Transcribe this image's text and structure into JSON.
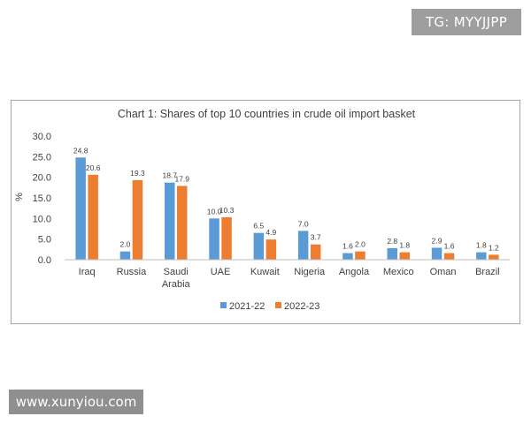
{
  "watermarks": {
    "top": "TG: MYYJJPP",
    "bottom": "www.xunyiou.com"
  },
  "colors": {
    "series_2021": "#5b9bd5",
    "series_2022": "#ed7d31",
    "axis": "#bfbfbf",
    "text": "#404040"
  },
  "chart_data": {
    "type": "bar",
    "title": "Chart 1: Shares of top 10 countries in crude oil import basket",
    "xlabel": "",
    "ylabel": "%",
    "ylim": [
      0,
      30
    ],
    "yticks": [
      "0.0",
      "5.0",
      "10.0",
      "15.0",
      "20.0",
      "25.0",
      "30.0"
    ],
    "categories": [
      [
        "Iraq"
      ],
      [
        "Russia"
      ],
      [
        "Saudi",
        "Arabia"
      ],
      [
        "UAE"
      ],
      [
        "Kuwait"
      ],
      [
        "Nigeria"
      ],
      [
        "Angola"
      ],
      [
        "Mexico"
      ],
      [
        "Oman"
      ],
      [
        "Brazil"
      ]
    ],
    "series": [
      {
        "name": "2021-22",
        "color": "#5b9bd5",
        "values": [
          24.8,
          2.0,
          18.7,
          10.0,
          6.5,
          7.0,
          1.6,
          2.8,
          2.9,
          1.8
        ],
        "labels": [
          "24.8",
          "2.0",
          "18.7",
          "10.0",
          "6.5",
          "7.0",
          "1.6",
          "2.8",
          "2.9",
          "1.8"
        ]
      },
      {
        "name": "2022-23",
        "color": "#ed7d31",
        "values": [
          20.6,
          19.3,
          17.9,
          10.3,
          4.9,
          3.7,
          2.0,
          1.8,
          1.6,
          1.2
        ],
        "labels": [
          "20.6",
          "19.3",
          "17.9",
          "10.3",
          "4.9",
          "3.7",
          "2.0",
          "1.8",
          "1.6",
          "1.2"
        ]
      }
    ],
    "grid": false,
    "legend_position": "bottom"
  }
}
